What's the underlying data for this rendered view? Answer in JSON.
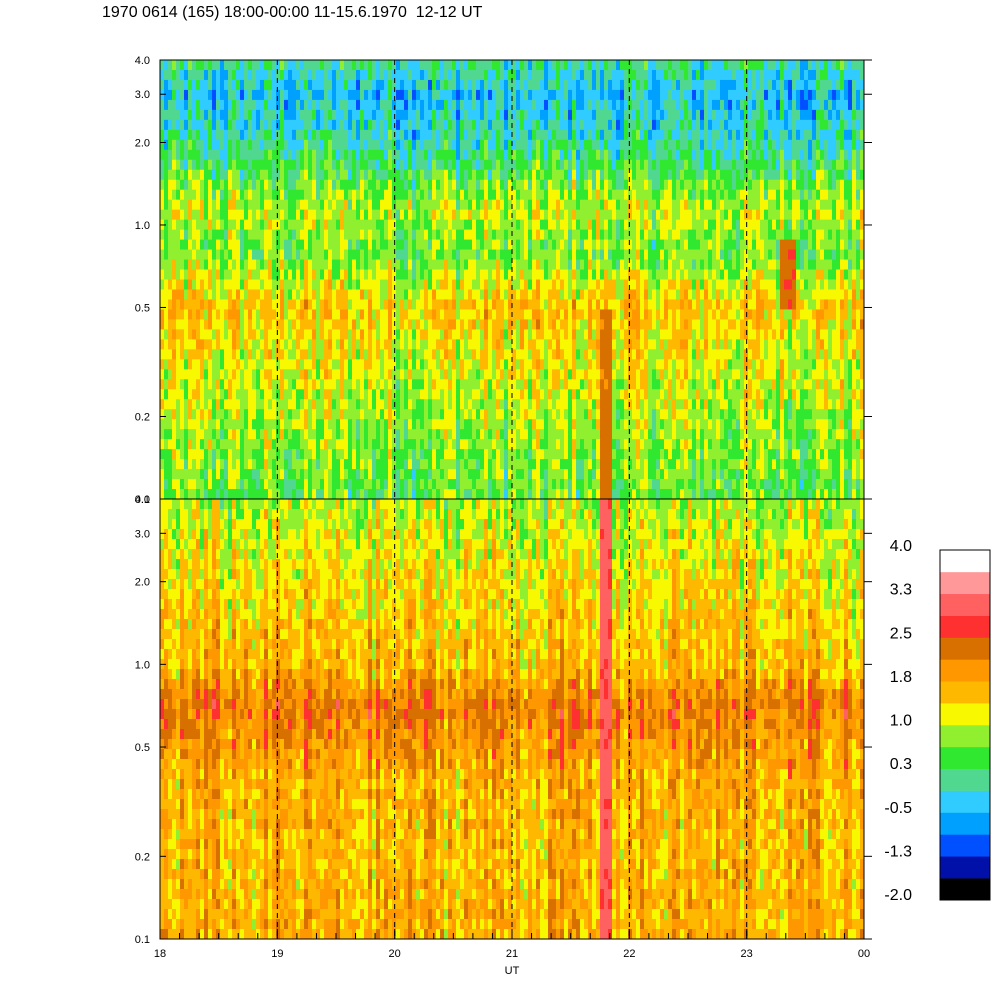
{
  "header": {
    "title": "1970 0614 (165) 18:00-00:00 11-15.6.1970  12-12 UT"
  },
  "chart_data": {
    "type": "heatmap",
    "xlabel": "UT",
    "x_tick_labels": [
      "18",
      "19",
      "20",
      "21",
      "22",
      "23",
      "00"
    ],
    "x_ticks_hours": [
      18,
      19,
      20,
      21,
      22,
      23,
      24
    ],
    "xlim": [
      18,
      24
    ],
    "dashed_lines_hours": [
      19,
      20,
      21,
      22,
      23
    ],
    "y_scale": "log",
    "ylim": [
      0.1,
      4.0
    ],
    "y_tick_values": [
      0.1,
      0.2,
      0.5,
      1.0,
      2.0,
      3.0,
      4.0
    ],
    "y_tick_labels": [
      "0.1",
      "0.2",
      "0.5",
      "1.0",
      "2.0",
      "3.0",
      "4.0"
    ],
    "panels": [
      {
        "name": "upper",
        "dominant_level_by_frequency": [
          {
            "y": 0.1,
            "level": 0.5
          },
          {
            "y": 0.2,
            "level": 0.9
          },
          {
            "y": 0.35,
            "level": 1.2
          },
          {
            "y": 0.5,
            "level": 1.5
          },
          {
            "y": 0.8,
            "level": 0.6
          },
          {
            "y": 1.1,
            "level": 1.0
          },
          {
            "y": 2.0,
            "level": 0.0
          },
          {
            "y": 3.0,
            "level": -0.4
          },
          {
            "y": 4.0,
            "level": 0.1
          }
        ]
      },
      {
        "name": "lower",
        "dominant_level_by_frequency": [
          {
            "y": 0.1,
            "level": 1.7
          },
          {
            "y": 0.2,
            "level": 1.6
          },
          {
            "y": 0.4,
            "level": 1.7
          },
          {
            "y": 0.7,
            "level": 2.2
          },
          {
            "y": 1.0,
            "level": 1.6
          },
          {
            "y": 2.0,
            "level": 1.3
          },
          {
            "y": 4.0,
            "level": 0.9
          }
        ]
      }
    ],
    "features": [
      {
        "hour": 21.8,
        "y_range": [
          0.1,
          4.0
        ],
        "level": 3.0,
        "panel": "lower"
      },
      {
        "hour": 21.8,
        "y_range": [
          0.1,
          0.5
        ],
        "level": 2.3,
        "panel": "upper"
      },
      {
        "hour": 23.35,
        "y_range": [
          0.5,
          0.9
        ],
        "level": 2.4,
        "panel": "upper"
      }
    ],
    "colorbar": {
      "tick_labels": [
        "4.0",
        "3.3",
        "2.5",
        "1.8",
        "1.0",
        "0.3",
        "-0.5",
        "-1.3",
        "-2.0"
      ],
      "levels": [
        -2.0,
        4.0
      ],
      "colors_bottom_to_top": [
        "#000000",
        "#0010a8",
        "#0050ff",
        "#00a0ff",
        "#30ccff",
        "#50d890",
        "#30e830",
        "#90f030",
        "#f8f800",
        "#ffb800",
        "#ff9800",
        "#d87000",
        "#ff3030",
        "#ff6060",
        "#ff9898",
        "#ffffff"
      ]
    }
  }
}
